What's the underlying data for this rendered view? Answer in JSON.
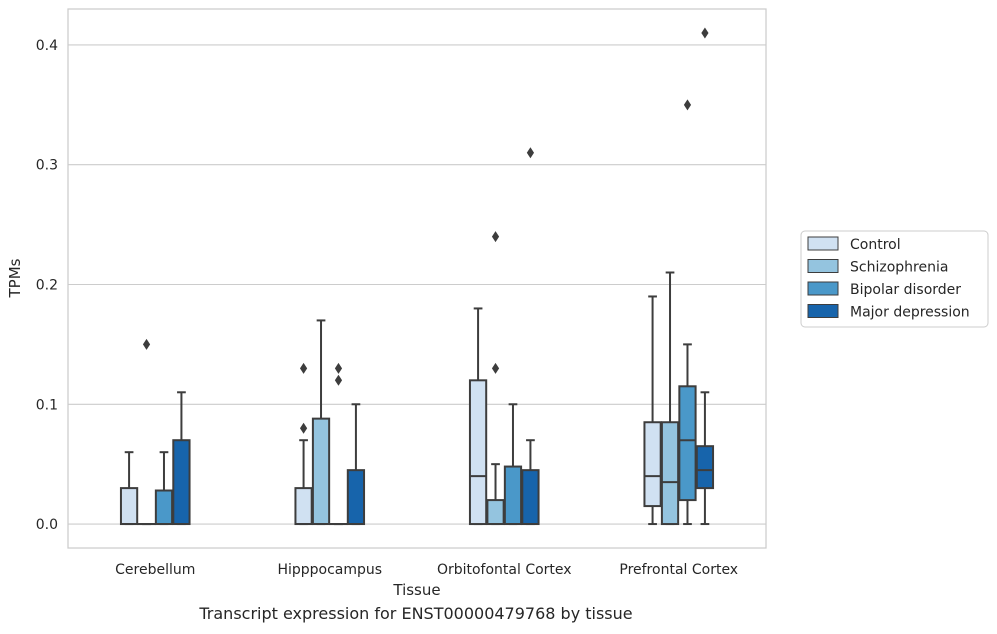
{
  "caption": "Transcript expression for ENST00000479768 by tissue",
  "chart_data": {
    "type": "box",
    "xlabel": "Tissue",
    "ylabel": "TPMs",
    "ylim": [
      -0.02,
      0.43
    ],
    "yticks": [
      0.0,
      0.1,
      0.2,
      0.3,
      0.4
    ],
    "ytick_labels": [
      "0.0",
      "0.1",
      "0.2",
      "0.3",
      "0.4"
    ],
    "grid": "horizontal",
    "legend_position": "right",
    "categories": [
      "Cerebellum",
      "Hipppocampus",
      "Orbitofontal Cortex",
      "Prefrontal Cortex"
    ],
    "series": [
      {
        "name": "Control",
        "color": "#d0e1f2",
        "boxes": [
          {
            "q1": 0,
            "median": 0,
            "q3": 0.03,
            "whislo": 0,
            "whishi": 0.06,
            "fliers": []
          },
          {
            "q1": 0,
            "median": 0,
            "q3": 0.03,
            "whislo": 0,
            "whishi": 0.07,
            "fliers": [
              0.08,
              0.13
            ]
          },
          {
            "q1": 0,
            "median": 0.04,
            "q3": 0.12,
            "whislo": 0,
            "whishi": 0.18,
            "fliers": []
          },
          {
            "q1": 0.015,
            "median": 0.04,
            "q3": 0.085,
            "whislo": 0,
            "whishi": 0.19,
            "fliers": []
          }
        ]
      },
      {
        "name": "Schizophrenia",
        "color": "#94c4df",
        "boxes": [
          {
            "q1": 0,
            "median": 0,
            "q3": 0,
            "whislo": 0,
            "whishi": 0,
            "fliers": [
              0.15
            ]
          },
          {
            "q1": 0,
            "median": 0,
            "q3": 0.088,
            "whislo": 0,
            "whishi": 0.17,
            "fliers": []
          },
          {
            "q1": 0,
            "median": 0,
            "q3": 0.02,
            "whislo": 0,
            "whishi": 0.05,
            "fliers": [
              0.13,
              0.24
            ]
          },
          {
            "q1": 0,
            "median": 0.035,
            "q3": 0.085,
            "whislo": 0,
            "whishi": 0.21,
            "fliers": []
          }
        ]
      },
      {
        "name": "Bipolar disorder",
        "color": "#4a98c9",
        "boxes": [
          {
            "q1": 0,
            "median": 0,
            "q3": 0.028,
            "whislo": 0,
            "whishi": 0.06,
            "fliers": []
          },
          {
            "q1": 0,
            "median": 0,
            "q3": 0,
            "whislo": 0,
            "whishi": 0,
            "fliers": [
              0.12,
              0.13
            ]
          },
          {
            "q1": 0,
            "median": 0,
            "q3": 0.048,
            "whislo": 0,
            "whishi": 0.1,
            "fliers": []
          },
          {
            "q1": 0.02,
            "median": 0.07,
            "q3": 0.115,
            "whislo": 0,
            "whishi": 0.15,
            "fliers": [
              0.35
            ]
          }
        ]
      },
      {
        "name": "Major depression",
        "color": "#1764ab",
        "boxes": [
          {
            "q1": 0,
            "median": 0,
            "q3": 0.07,
            "whislo": 0,
            "whishi": 0.11,
            "fliers": []
          },
          {
            "q1": 0,
            "median": 0,
            "q3": 0.045,
            "whislo": 0,
            "whishi": 0.1,
            "fliers": []
          },
          {
            "q1": 0,
            "median": 0,
            "q3": 0.045,
            "whislo": 0,
            "whishi": 0.07,
            "fliers": [
              0.31
            ]
          },
          {
            "q1": 0.03,
            "median": 0.045,
            "q3": 0.065,
            "whislo": 0,
            "whishi": 0.11,
            "fliers": [
              0.41
            ]
          }
        ]
      }
    ]
  }
}
